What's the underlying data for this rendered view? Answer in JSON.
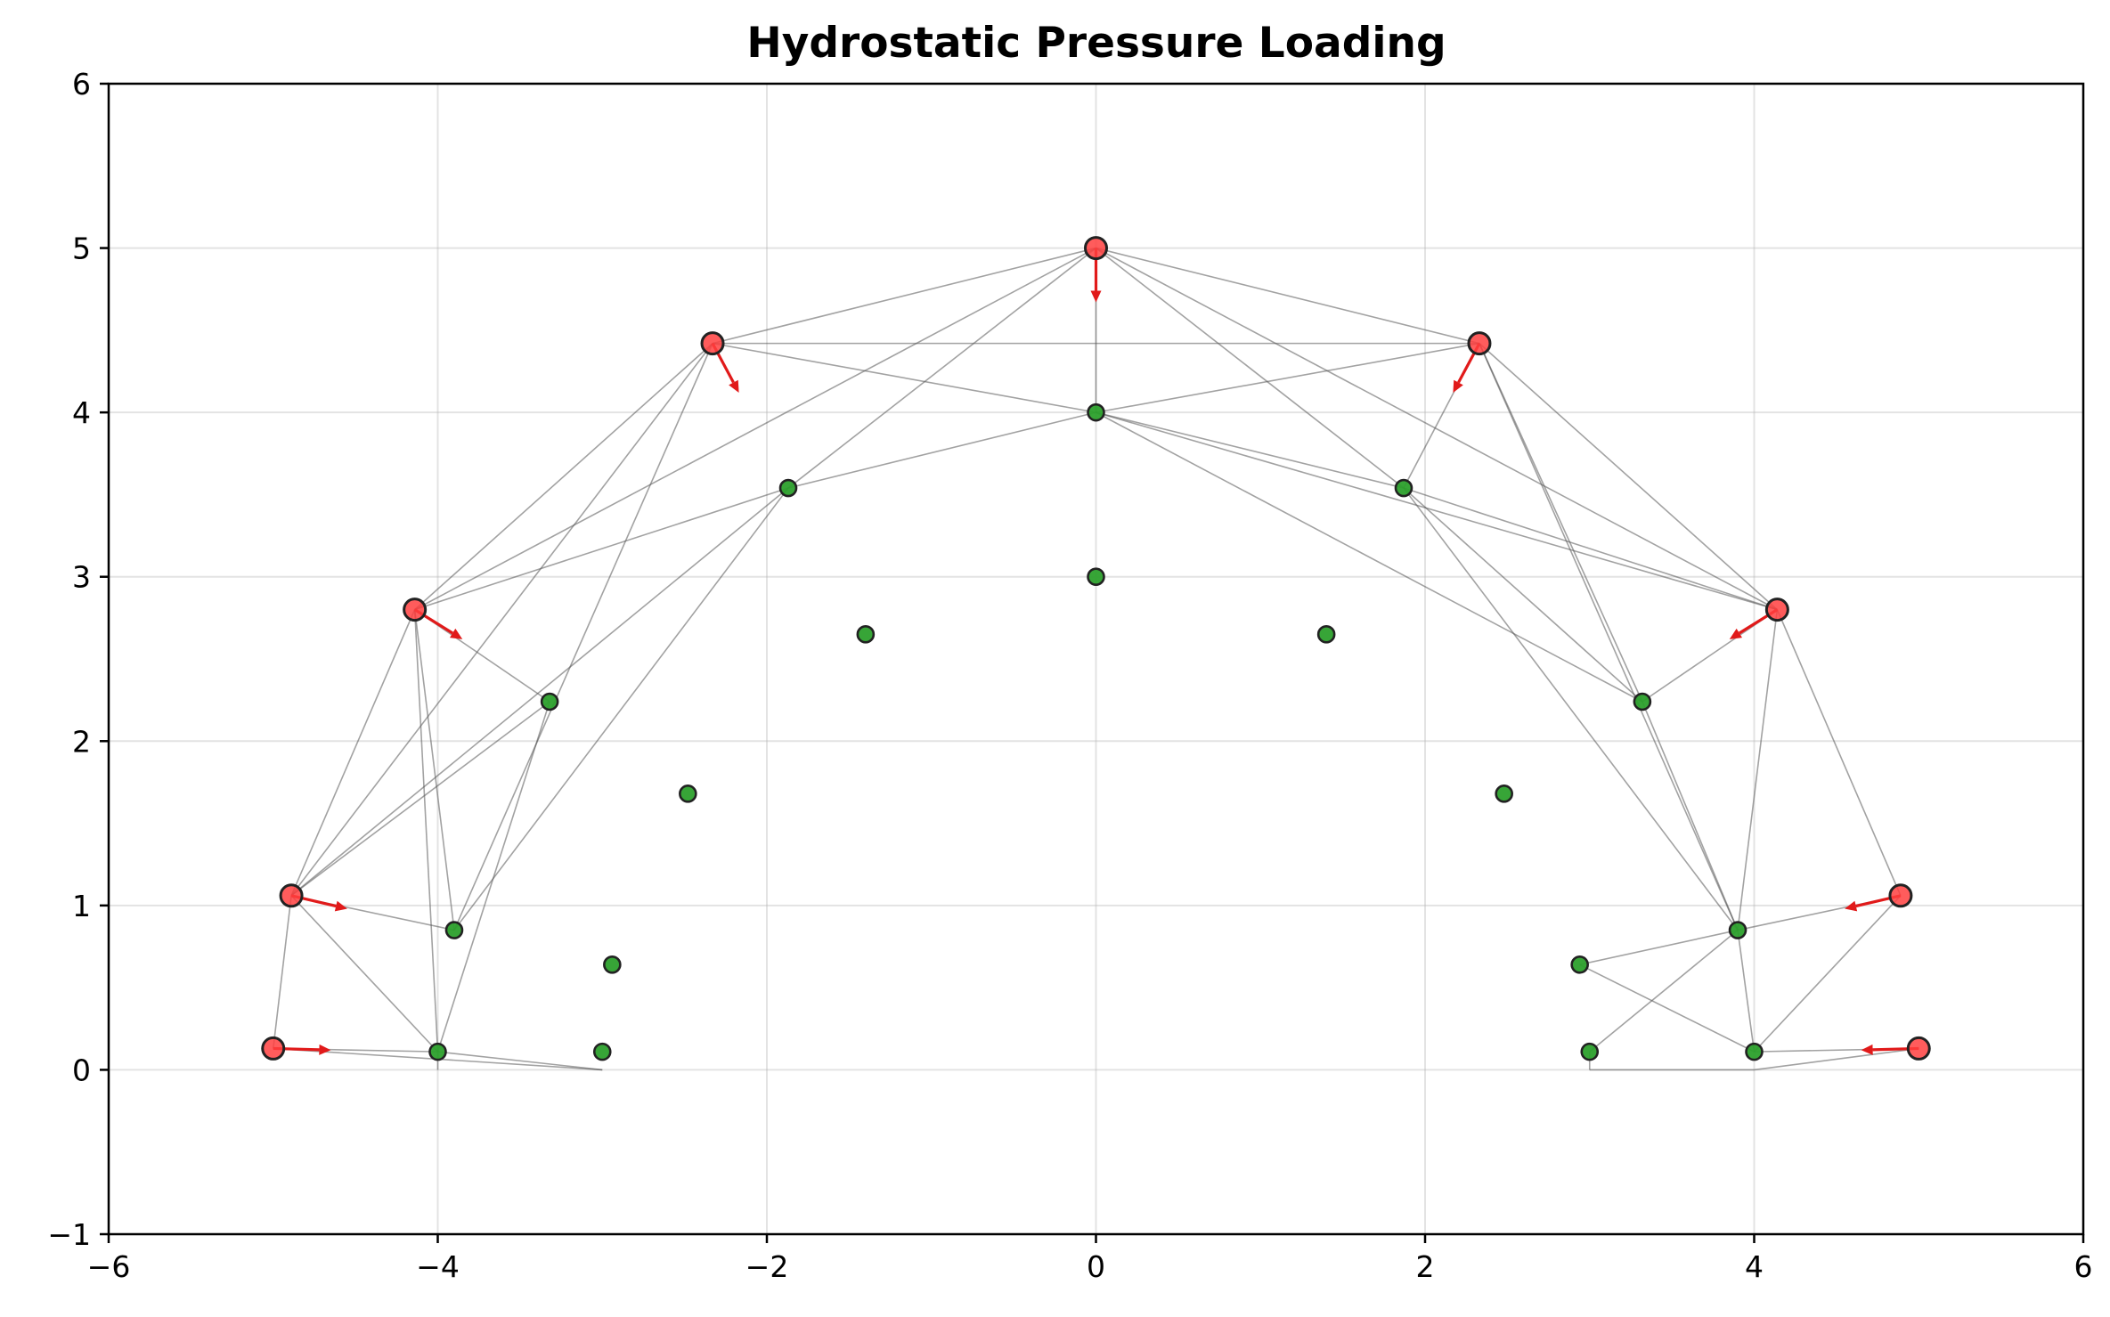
{
  "chart_data": {
    "type": "scatter",
    "title": "Hydrostatic Pressure Loading",
    "xlabel": "",
    "ylabel": "",
    "xlim": [
      -6,
      6
    ],
    "ylim": [
      -1,
      6
    ],
    "xticks": [
      -6,
      -4,
      -2,
      0,
      2,
      4,
      6
    ],
    "yticks": [
      -1,
      0,
      1,
      2,
      3,
      4,
      5,
      6
    ],
    "xtick_labels": [
      "−6",
      "−4",
      "−2",
      "0",
      "2",
      "4",
      "6"
    ],
    "ytick_labels": [
      "−1",
      "0",
      "1",
      "2",
      "3",
      "4",
      "5",
      "6"
    ],
    "grid": true,
    "colors": {
      "loaded_node": "#ff4040",
      "interior_node": "#2ca02c",
      "node_edge": "#222222",
      "member": "#555555",
      "load_arrow": "#e11a1a"
    },
    "series": [
      {
        "marker": "large-circle",
        "color": "#ff4040",
        "points": [
          [
            -5.0,
            0.13
          ],
          [
            -4.89,
            1.06
          ],
          [
            -4.14,
            2.8
          ],
          [
            -2.33,
            4.42
          ],
          [
            0.0,
            5.0
          ],
          [
            2.33,
            4.42
          ],
          [
            4.14,
            2.8
          ],
          [
            4.89,
            1.06
          ],
          [
            5.0,
            0.13
          ]
        ]
      },
      {
        "marker": "small-circle",
        "color": "#2ca02c",
        "points": [
          [
            -4.0,
            0.11
          ],
          [
            -3.9,
            0.85
          ],
          [
            -3.32,
            2.24
          ],
          [
            -1.87,
            3.54
          ],
          [
            0.0,
            4.0
          ],
          [
            1.87,
            3.54
          ],
          [
            3.32,
            2.24
          ],
          [
            3.9,
            0.85
          ],
          [
            4.0,
            0.11
          ],
          [
            -3.0,
            0.11
          ],
          [
            -2.94,
            0.64
          ],
          [
            -2.48,
            1.68
          ],
          [
            -1.4,
            2.65
          ],
          [
            0.0,
            3.0
          ],
          [
            1.4,
            2.65
          ],
          [
            2.48,
            1.68
          ],
          [
            2.94,
            0.64
          ],
          [
            3.0,
            0.11
          ]
        ]
      }
    ],
    "members": [
      [
        [
          -5.0,
          0.13
        ],
        [
          -4.0,
          0.11
        ]
      ],
      [
        [
          -5.0,
          0.13
        ],
        [
          -4.89,
          1.06
        ]
      ],
      [
        [
          -5.0,
          0.13
        ],
        [
          -3.0,
          0.0
        ]
      ],
      [
        [
          -4.0,
          0.11
        ],
        [
          -3.0,
          0.0
        ]
      ],
      [
        [
          -4.0,
          0.11
        ],
        [
          -4.0,
          0.0
        ]
      ],
      [
        [
          -4.89,
          1.06
        ],
        [
          -3.9,
          0.85
        ]
      ],
      [
        [
          -4.89,
          1.06
        ],
        [
          -4.0,
          0.11
        ]
      ],
      [
        [
          -4.89,
          1.06
        ],
        [
          -4.14,
          2.8
        ]
      ],
      [
        [
          -4.89,
          1.06
        ],
        [
          -2.33,
          4.42
        ]
      ],
      [
        [
          -4.89,
          1.06
        ],
        [
          -1.87,
          3.54
        ]
      ],
      [
        [
          -4.89,
          1.06
        ],
        [
          -3.32,
          2.24
        ]
      ],
      [
        [
          -4.14,
          2.8
        ],
        [
          -3.9,
          0.85
        ]
      ],
      [
        [
          -4.14,
          2.8
        ],
        [
          -4.0,
          0.11
        ]
      ],
      [
        [
          -4.14,
          2.8
        ],
        [
          -3.32,
          2.24
        ]
      ],
      [
        [
          -4.14,
          2.8
        ],
        [
          -2.33,
          4.42
        ]
      ],
      [
        [
          -4.14,
          2.8
        ],
        [
          -1.87,
          3.54
        ]
      ],
      [
        [
          -4.14,
          2.8
        ],
        [
          0.0,
          5.0
        ]
      ],
      [
        [
          -3.9,
          0.85
        ],
        [
          -1.87,
          3.54
        ]
      ],
      [
        [
          -3.9,
          0.85
        ],
        [
          -2.33,
          4.42
        ]
      ],
      [
        [
          -4.0,
          0.11
        ],
        [
          -3.32,
          2.24
        ]
      ],
      [
        [
          -2.33,
          4.42
        ],
        [
          0.0,
          5.0
        ]
      ],
      [
        [
          -2.33,
          4.42
        ],
        [
          2.33,
          4.42
        ]
      ],
      [
        [
          -2.33,
          4.42
        ],
        [
          0.0,
          4.0
        ]
      ],
      [
        [
          -1.87,
          3.54
        ],
        [
          0.0,
          4.0
        ]
      ],
      [
        [
          -1.87,
          3.54
        ],
        [
          0.0,
          5.0
        ]
      ],
      [
        [
          0.0,
          5.0
        ],
        [
          0.0,
          4.0
        ]
      ],
      [
        [
          0.0,
          5.0
        ],
        [
          2.33,
          4.42
        ]
      ],
      [
        [
          0.0,
          5.0
        ],
        [
          1.87,
          3.54
        ]
      ],
      [
        [
          0.0,
          5.0
        ],
        [
          4.14,
          2.8
        ]
      ],
      [
        [
          2.33,
          4.42
        ],
        [
          0.0,
          4.0
        ]
      ],
      [
        [
          2.33,
          4.42
        ],
        [
          1.87,
          3.54
        ]
      ],
      [
        [
          2.33,
          4.42
        ],
        [
          4.14,
          2.8
        ]
      ],
      [
        [
          2.33,
          4.42
        ],
        [
          3.9,
          0.85
        ]
      ],
      [
        [
          2.33,
          4.42
        ],
        [
          3.32,
          2.24
        ]
      ],
      [
        [
          0.0,
          4.0
        ],
        [
          1.87,
          3.54
        ]
      ],
      [
        [
          0.0,
          4.0
        ],
        [
          4.14,
          2.8
        ]
      ],
      [
        [
          0.0,
          4.0
        ],
        [
          3.32,
          2.24
        ]
      ],
      [
        [
          1.87,
          3.54
        ],
        [
          4.14,
          2.8
        ]
      ],
      [
        [
          1.87,
          3.54
        ],
        [
          3.9,
          0.85
        ]
      ],
      [
        [
          1.87,
          3.54
        ],
        [
          3.32,
          2.24
        ]
      ],
      [
        [
          4.14,
          2.8
        ],
        [
          3.32,
          2.24
        ]
      ],
      [
        [
          4.14,
          2.8
        ],
        [
          3.9,
          0.85
        ]
      ],
      [
        [
          4.14,
          2.8
        ],
        [
          4.89,
          1.06
        ]
      ],
      [
        [
          3.32,
          2.24
        ],
        [
          3.9,
          0.85
        ]
      ],
      [
        [
          4.89,
          1.06
        ],
        [
          3.9,
          0.85
        ]
      ],
      [
        [
          4.89,
          1.06
        ],
        [
          4.0,
          0.11
        ]
      ],
      [
        [
          3.9,
          0.85
        ],
        [
          3.0,
          0.11
        ]
      ],
      [
        [
          3.9,
          0.85
        ],
        [
          2.94,
          0.64
        ]
      ],
      [
        [
          3.9,
          0.85
        ],
        [
          4.0,
          0.11
        ]
      ],
      [
        [
          2.94,
          0.64
        ],
        [
          4.0,
          0.11
        ]
      ],
      [
        [
          5.0,
          0.13
        ],
        [
          4.0,
          0.11
        ]
      ],
      [
        [
          5.0,
          0.13
        ],
        [
          4.0,
          0.0
        ]
      ],
      [
        [
          4.0,
          0.0
        ],
        [
          3.0,
          0.0
        ]
      ],
      [
        [
          3.0,
          0.11
        ],
        [
          3.0,
          0.0
        ]
      ]
    ],
    "loads": [
      {
        "from": [
          -5.0,
          0.13
        ],
        "to": [
          -4.65,
          0.12
        ]
      },
      {
        "from": [
          -4.89,
          1.06
        ],
        "to": [
          -4.55,
          0.98
        ]
      },
      {
        "from": [
          -4.14,
          2.8
        ],
        "to": [
          -3.85,
          2.62
        ]
      },
      {
        "from": [
          -2.33,
          4.42
        ],
        "to": [
          -2.17,
          4.12
        ]
      },
      {
        "from": [
          0.0,
          5.0
        ],
        "to": [
          0.0,
          4.67
        ]
      },
      {
        "from": [
          2.33,
          4.42
        ],
        "to": [
          2.17,
          4.12
        ]
      },
      {
        "from": [
          4.14,
          2.8
        ],
        "to": [
          3.85,
          2.62
        ]
      },
      {
        "from": [
          4.89,
          1.06
        ],
        "to": [
          4.55,
          0.98
        ]
      },
      {
        "from": [
          5.0,
          0.13
        ],
        "to": [
          4.65,
          0.12
        ]
      }
    ]
  }
}
